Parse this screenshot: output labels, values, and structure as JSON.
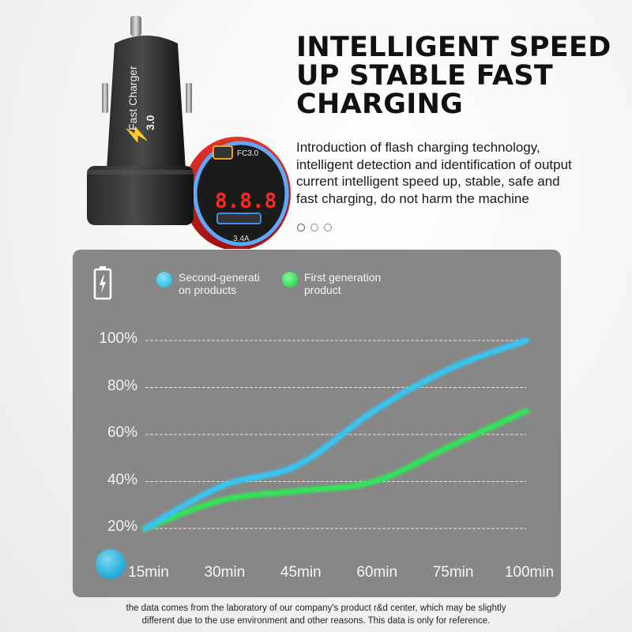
{
  "headline": {
    "lines": [
      "INTELLIGENT SPEED",
      "UP STABLE FAST",
      "CHARGING"
    ]
  },
  "intro": {
    "lines": [
      "Introduction of flash charging technology,",
      "intelligent detection and identification of output",
      "current intelligent speed up, stable, safe and",
      "fast charging, do not harm the machine"
    ]
  },
  "product": {
    "black_charger_text": "Fast Charger",
    "black_charger_subtext": "3.0",
    "red_charger_top": "FC3.0",
    "red_charger_display": "8.8.8",
    "red_charger_bottom": "3.4A"
  },
  "carousel": {
    "count": 3,
    "active": 0
  },
  "colors": {
    "panel": "#878787",
    "second_gen": "#38c4ee",
    "first_gen": "#35e05a",
    "accent_red": "#d91e18"
  },
  "chart_data": {
    "type": "line",
    "title": "",
    "xlabel": "",
    "ylabel": "",
    "categories": [
      "15min",
      "30min",
      "45min",
      "60min",
      "75min",
      "100min"
    ],
    "y_ticks": [
      "20%",
      "40%",
      "60%",
      "80%",
      "100%"
    ],
    "ylim": [
      20,
      100
    ],
    "grid": "dashed horizontal",
    "legend_position": "top-left",
    "series": [
      {
        "name": "Second-generati on products",
        "name_lines": [
          "Second-generati",
          "on products"
        ],
        "color": "#38c4ee",
        "values": [
          20,
          38,
          47,
          70,
          88,
          100
        ]
      },
      {
        "name": "First generation product",
        "name_lines": [
          "First generation",
          "product"
        ],
        "color": "#35e05a",
        "values": [
          20,
          32,
          36,
          40,
          55,
          70
        ]
      }
    ]
  },
  "footnote": {
    "lines": [
      "the data comes from the laboratory of our company's product r&d center, which may be slightly",
      "different due to the use environment and other reasons. This data is only for reference."
    ]
  }
}
